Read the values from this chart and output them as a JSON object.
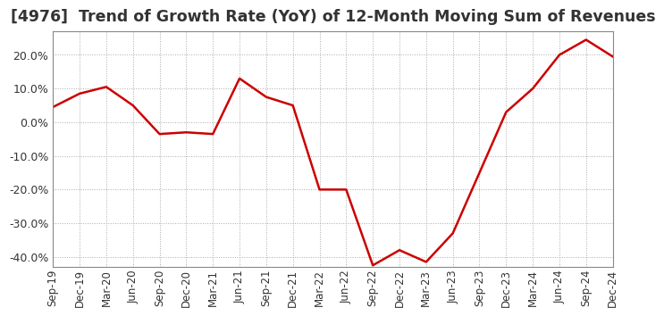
{
  "title": "[4976]  Trend of Growth Rate (YoY) of 12-Month Moving Sum of Revenues",
  "title_fontsize": 12.5,
  "background_color": "#ffffff",
  "line_color": "#cc0000",
  "grid_color": "#aaaaaa",
  "ylim": [
    -43,
    27
  ],
  "yticks": [
    -40,
    -30,
    -20,
    -10,
    0,
    10,
    20
  ],
  "x_labels": [
    "Sep-19",
    "Dec-19",
    "Mar-20",
    "Jun-20",
    "Sep-20",
    "Dec-20",
    "Mar-21",
    "Jun-21",
    "Sep-21",
    "Dec-21",
    "Mar-22",
    "Jun-22",
    "Sep-22",
    "Dec-22",
    "Mar-23",
    "Jun-23",
    "Sep-23",
    "Dec-23",
    "Mar-24",
    "Jun-24",
    "Sep-24",
    "Dec-24"
  ],
  "values": [
    4.5,
    8.5,
    10.5,
    5.0,
    -3.5,
    -3.0,
    -3.5,
    13.0,
    7.5,
    5.0,
    -20.0,
    -20.0,
    -42.5,
    -38.0,
    -41.5,
    -33.0,
    -15.0,
    3.0,
    10.0,
    20.0,
    24.5,
    19.5
  ]
}
